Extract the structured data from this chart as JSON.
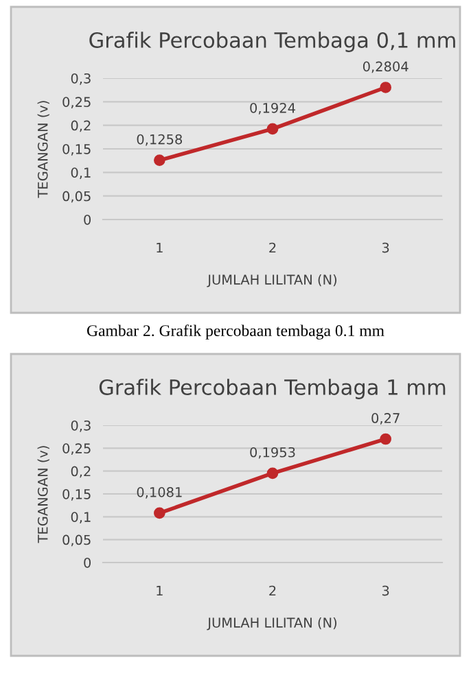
{
  "chart_data": [
    {
      "type": "line",
      "title": "Grafik Percobaan Tembaga 0,1 mm",
      "xlabel": "JUMLAH LILITAN (N)",
      "ylabel": "TEGANGAN (v)",
      "categories": [
        "1",
        "2",
        "3"
      ],
      "series": [
        {
          "color": "#c0282a",
          "values": [
            0.1258,
            0.1924,
            0.2804
          ],
          "value_labels": [
            "0,1258",
            "0,1924",
            "0,2804"
          ]
        }
      ],
      "ylim": [
        0,
        0.3
      ],
      "yticks": [
        {
          "value": 0,
          "label": "0"
        },
        {
          "value": 0.05,
          "label": "0,05"
        },
        {
          "value": 0.1,
          "label": "0,1"
        },
        {
          "value": 0.15,
          "label": "0,15"
        },
        {
          "value": 0.2,
          "label": "0,2"
        },
        {
          "value": 0.25,
          "label": "0,25"
        },
        {
          "value": 0.3,
          "label": "0,3"
        }
      ],
      "grid": "y",
      "marker": "circle",
      "line_style": "solid",
      "legend": false,
      "annotations": [
        "Gambar 2. Grafik percobaan tembaga 0.1 mm"
      ]
    },
    {
      "type": "line",
      "title": "Grafik Percobaan Tembaga 1 mm",
      "xlabel": "JUMLAH LILITAN (N)",
      "ylabel": "TEGANGAN (v)",
      "categories": [
        "1",
        "2",
        "3"
      ],
      "series": [
        {
          "color": "#c0282a",
          "values": [
            0.1081,
            0.1953,
            0.27
          ],
          "value_labels": [
            "0,1081",
            "0,1953",
            "0,27"
          ]
        }
      ],
      "ylim": [
        0,
        0.3
      ],
      "yticks": [
        {
          "value": 0,
          "label": "0"
        },
        {
          "value": 0.05,
          "label": "0,05"
        },
        {
          "value": 0.1,
          "label": "0,1"
        },
        {
          "value": 0.15,
          "label": "0,15"
        },
        {
          "value": 0.2,
          "label": "0,2"
        },
        {
          "value": 0.25,
          "label": "0,25"
        },
        {
          "value": 0.3,
          "label": "0,3"
        }
      ],
      "grid": "y",
      "marker": "circle",
      "line_style": "solid",
      "legend": false
    }
  ]
}
